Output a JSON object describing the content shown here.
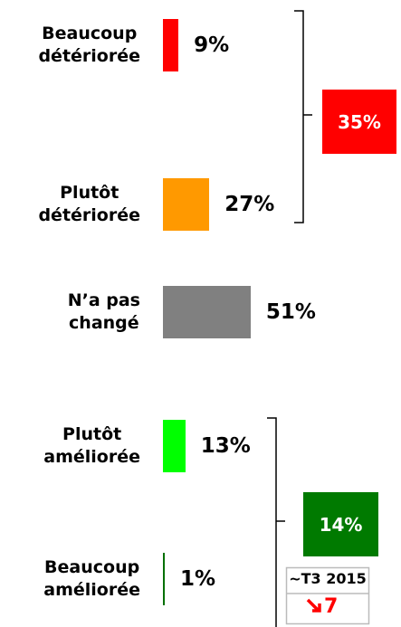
{
  "chart_data": {
    "type": "bar",
    "orientation": "horizontal",
    "categories": [
      "Beaucoup\ndétériorée",
      "Plutôt\ndétériorée",
      "N’a pas\nchangé",
      "Plutôt\naméliorée",
      "Beaucoup\naméliorée"
    ],
    "values": [
      9,
      27,
      51,
      13,
      1
    ],
    "value_labels": [
      "9%",
      "27%",
      "51%",
      "13%",
      "1%"
    ],
    "colors": [
      "#ff0000",
      "#ff9900",
      "#808080",
      "#00ff00",
      "#007000"
    ],
    "group_totals": {
      "values": [
        35,
        14
      ],
      "value_labels": [
        "35%",
        "14%"
      ],
      "colors": [
        "#ff0000",
        "#007a00"
      ]
    },
    "annotation": {
      "period": "~T3 2015",
      "change": 7,
      "color": "#ff0000"
    }
  }
}
